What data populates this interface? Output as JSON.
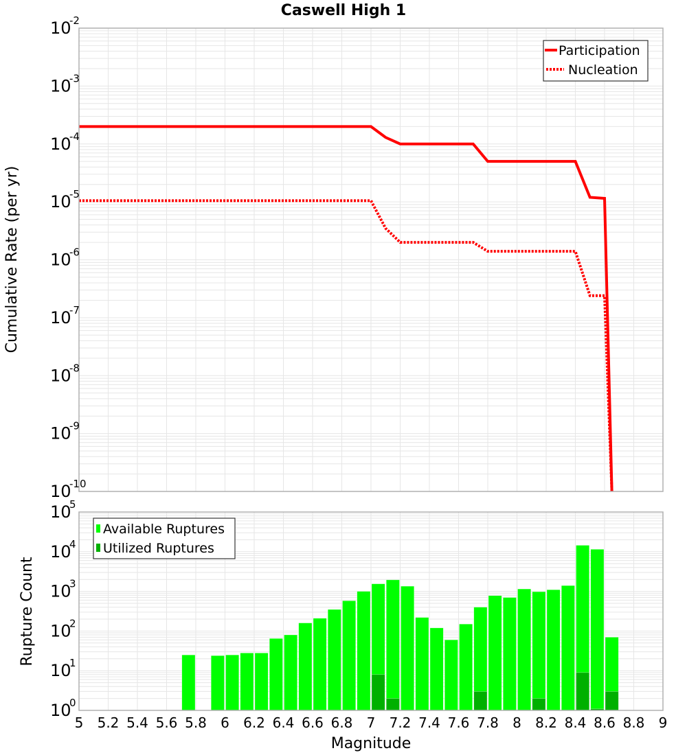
{
  "chart_data": [
    {
      "type": "line",
      "title": "Caswell High 1",
      "xlabel": "Magnitude",
      "ylabel": "Cumulative Rate (per yr)",
      "yscale": "log",
      "xlim": [
        5,
        9
      ],
      "ylim": [
        1e-10,
        0.01
      ],
      "grid": true,
      "legend_position": "upper right",
      "y_ticks": [
        {
          "base": "10",
          "exp": "-2",
          "value": 0.01
        },
        {
          "base": "10",
          "exp": "-3",
          "value": 0.001
        },
        {
          "base": "10",
          "exp": "-4",
          "value": 0.0001
        },
        {
          "base": "10",
          "exp": "-5",
          "value": 1e-05
        },
        {
          "base": "10",
          "exp": "-6",
          "value": 1e-06
        },
        {
          "base": "10",
          "exp": "-7",
          "value": 1e-07
        },
        {
          "base": "10",
          "exp": "-8",
          "value": 1e-08
        },
        {
          "base": "10",
          "exp": "-9",
          "value": 1e-09
        },
        {
          "base": "10",
          "exp": "-10",
          "value": 1e-10
        }
      ],
      "series": [
        {
          "name": "Participation",
          "style": "solid",
          "color": "#ff0000",
          "x": [
            5.0,
            7.0,
            7.1,
            7.2,
            7.7,
            7.8,
            8.4,
            8.5,
            8.6,
            8.65
          ],
          "y": [
            0.0002,
            0.0002,
            0.00013,
            0.0001,
            0.0001,
            5e-05,
            5e-05,
            1.2e-05,
            1.15e-05,
            1e-10
          ]
        },
        {
          "name": "Nucleation",
          "style": "dotted",
          "color": "#ff0000",
          "x": [
            5.0,
            7.0,
            7.1,
            7.2,
            7.7,
            7.8,
            8.4,
            8.5,
            8.6,
            8.65
          ],
          "y": [
            1.05e-05,
            1.05e-05,
            3.5e-06,
            2e-06,
            2e-06,
            1.4e-06,
            1.4e-06,
            2.4e-07,
            2.4e-07,
            1e-10
          ]
        }
      ]
    },
    {
      "type": "bar",
      "title": "",
      "xlabel": "Magnitude",
      "ylabel": "Rupture Count",
      "yscale": "log",
      "xlim": [
        5,
        9
      ],
      "ylim": [
        1,
        100000.0
      ],
      "grid": true,
      "legend_position": "upper left",
      "bar_width": 0.1,
      "y_ticks": [
        {
          "base": "10",
          "exp": "5",
          "value": 100000.0
        },
        {
          "base": "10",
          "exp": "4",
          "value": 10000.0
        },
        {
          "base": "10",
          "exp": "3",
          "value": 1000.0
        },
        {
          "base": "10",
          "exp": "2",
          "value": 100.0
        },
        {
          "base": "10",
          "exp": "1",
          "value": 10.0
        },
        {
          "base": "10",
          "exp": "0",
          "value": 1.0
        }
      ],
      "x_ticks": [
        "5",
        "5.2",
        "5.4",
        "5.6",
        "5.8",
        "6",
        "6.2",
        "6.4",
        "6.6",
        "6.8",
        "7",
        "7.2",
        "7.4",
        "7.6",
        "7.8",
        "8",
        "8.2",
        "8.4",
        "8.6",
        "8.8",
        "9"
      ],
      "categories": [
        5.75,
        5.95,
        6.05,
        6.15,
        6.25,
        6.35,
        6.45,
        6.55,
        6.65,
        6.75,
        6.85,
        6.95,
        7.05,
        7.15,
        7.25,
        7.35,
        7.45,
        7.55,
        7.65,
        7.75,
        7.85,
        7.95,
        8.05,
        8.15,
        8.25,
        8.35,
        8.45,
        8.55,
        8.65
      ],
      "series": [
        {
          "name": "Available Ruptures",
          "color": "#00ff00",
          "values": [
            25,
            24,
            25,
            28,
            28,
            65,
            80,
            160,
            210,
            350,
            580,
            1000,
            1550,
            1950,
            1350,
            220,
            120,
            60,
            150,
            400,
            780,
            700,
            1150,
            980,
            1100,
            1400,
            14500,
            11500,
            70
          ]
        },
        {
          "name": "Utilized Ruptures",
          "color": "#00b000",
          "values": [
            0,
            0,
            0,
            0,
            0,
            0,
            0,
            0,
            0,
            0,
            0,
            0,
            8,
            2,
            0,
            0,
            0,
            0,
            0,
            3,
            0,
            0,
            0,
            2,
            0,
            0,
            9,
            1.1,
            3
          ]
        }
      ]
    }
  ],
  "plot": {
    "title": "Caswell High 1",
    "top_ylabel": "Cumulative Rate (per yr)",
    "bottom_ylabel": "Rupture Count",
    "xlabel": "Magnitude",
    "legend_top": [
      "Participation",
      "Nucleation"
    ],
    "legend_bottom": [
      "Available Ruptures",
      "Utilized Ruptures"
    ]
  },
  "colors": {
    "line": "#ff0000",
    "available": "#00ff00",
    "utilized": "#00b000",
    "grid": "#e6e6e6",
    "frame": "#b0b0b0"
  }
}
